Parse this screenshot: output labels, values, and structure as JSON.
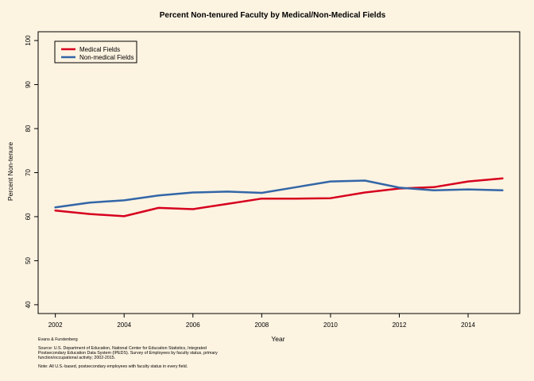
{
  "chart_data": {
    "type": "line",
    "title": "Percent Non-tenured Faculty by Medical/Non-Medical Fields",
    "xlabel": "Year",
    "ylabel": "Percent Non-tenure",
    "xlim": [
      2001.5,
      2015.5
    ],
    "ylim": [
      38,
      102
    ],
    "xticks": [
      2002,
      2004,
      2006,
      2008,
      2010,
      2012,
      2014
    ],
    "yticks": [
      40,
      50,
      60,
      70,
      80,
      90,
      100
    ],
    "grid": false,
    "legend_position": "top-left",
    "x": [
      2002,
      2003,
      2004,
      2005,
      2006,
      2007,
      2008,
      2009,
      2010,
      2011,
      2012,
      2013,
      2014,
      2015
    ],
    "series": [
      {
        "name": "Medical Fields",
        "color": "#d7001e",
        "values": [
          61.4,
          60.6,
          60.1,
          62.0,
          61.7,
          62.9,
          64.1,
          64.1,
          64.2,
          65.5,
          66.4,
          66.7,
          68.0,
          68.7
        ]
      },
      {
        "name": "Non-medical Fields",
        "color": "#3366a7",
        "values": [
          62.1,
          63.2,
          63.7,
          64.8,
          65.5,
          65.7,
          65.4,
          66.7,
          68.0,
          68.2,
          66.6,
          66.0,
          66.2,
          66.0
        ]
      }
    ]
  },
  "footer": {
    "credit": "Evans & Furstenberg",
    "source_line1": "Source: U.S. Department of Education, National Center for Education Statistics, Integrated",
    "source_line2": " Postsecondary Education Data System (IPEDS).  Survey of Employees by faculty status, primary",
    "source_line3": " function/occupational activity; 2002-2015.",
    "note": "Note: All U.S.-based, postsecondary employees with faculty status in every field."
  }
}
